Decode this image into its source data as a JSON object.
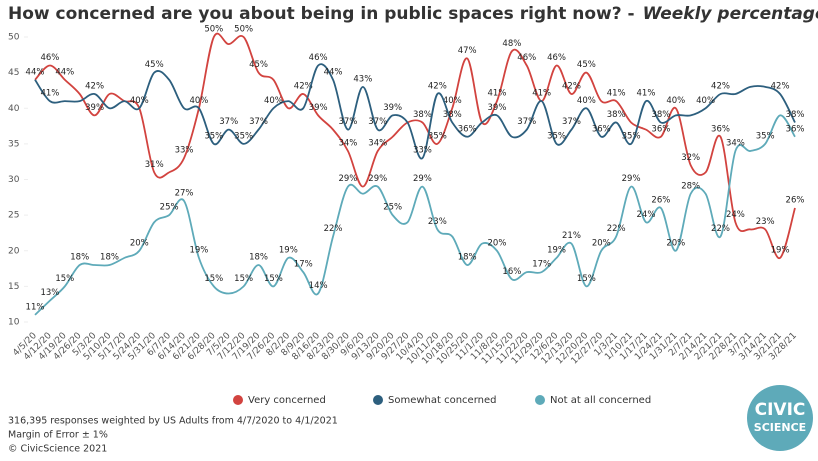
{
  "chart_data": {
    "type": "line",
    "title": "How concerned are you about being in public spaces right now? -",
    "subtitle": "Weekly percentage",
    "categories": [
      "4/5/20",
      "4/12/20",
      "4/19/20",
      "4/26/20",
      "5/3/20",
      "5/10/20",
      "5/17/20",
      "5/24/20",
      "5/31/20",
      "6/7/20",
      "6/14/20",
      "6/21/20",
      "6/28/20",
      "7/5/20",
      "7/12/20",
      "7/19/20",
      "7/26/20",
      "8/2/20",
      "8/9/20",
      "8/16/20",
      "8/23/20",
      "8/30/20",
      "9/6/20",
      "9/13/20",
      "9/20/20",
      "9/27/20",
      "10/4/20",
      "10/11/20",
      "10/18/20",
      "10/25/20",
      "11/1/20",
      "11/8/20",
      "11/15/20",
      "11/22/20",
      "11/29/20",
      "12/6/20",
      "12/13/20",
      "12/20/20",
      "12/27/20",
      "1/3/21",
      "1/10/21",
      "1/17/21",
      "1/24/21",
      "1/31/21",
      "2/7/21",
      "2/14/21",
      "2/21/21",
      "2/28/21",
      "3/7/21",
      "3/14/21",
      "3/21/21",
      "3/28/21"
    ],
    "series": [
      {
        "name": "Very concerned",
        "color": "#d2433f",
        "values": [
          44,
          46,
          44,
          42,
          39,
          42,
          41,
          40,
          31,
          31,
          33,
          40,
          50,
          49,
          50,
          45,
          44,
          40,
          42,
          39,
          37,
          34,
          29,
          34,
          36,
          38,
          38,
          35,
          40,
          47,
          38,
          41,
          48,
          46,
          41,
          46,
          42,
          45,
          41,
          41,
          38,
          37,
          36,
          40,
          32,
          31,
          36,
          24,
          23,
          23,
          19,
          26
        ],
        "value_labels": [
          null,
          "46%",
          "44%",
          null,
          "39%",
          null,
          null,
          null,
          "31%",
          null,
          "33%",
          null,
          "50%",
          null,
          "50%",
          "45%",
          null,
          null,
          "42%",
          "39%",
          null,
          "34%",
          null,
          "34%",
          null,
          null,
          "38%",
          "35%",
          "40%",
          "47%",
          null,
          "41%",
          "48%",
          "46%",
          "41%",
          "46%",
          "42%",
          "45%",
          null,
          "41%",
          null,
          null,
          "36%",
          "40%",
          "32%",
          null,
          "36%",
          "24%",
          null,
          "23%",
          "19%",
          "26%"
        ]
      },
      {
        "name": "Somewhat concerned",
        "color": "#2d5f7e",
        "values": [
          44,
          41,
          41,
          41,
          42,
          40,
          41,
          40,
          45,
          44,
          40,
          40,
          35,
          37,
          35,
          37,
          40,
          41,
          40,
          46,
          44,
          37,
          43,
          37,
          39,
          38,
          33,
          42,
          38,
          36,
          38,
          39,
          36,
          37,
          41,
          35,
          37,
          40,
          36,
          38,
          35,
          41,
          38,
          39,
          39,
          40,
          42,
          42,
          43,
          43,
          42,
          38
        ],
        "value_labels": [
          "44%",
          "41%",
          null,
          null,
          "42%",
          null,
          null,
          "40%",
          "45%",
          null,
          null,
          "40%",
          "35%",
          "37%",
          "35%",
          "37%",
          "40%",
          null,
          null,
          "46%",
          "44%",
          "37%",
          "43%",
          "37%",
          "39%",
          null,
          "33%",
          "42%",
          "38%",
          "36%",
          null,
          "39%",
          null,
          "37%",
          null,
          "35%",
          "37%",
          "40%",
          "36%",
          "38%",
          "35%",
          "41%",
          "38%",
          null,
          null,
          "40%",
          "42%",
          null,
          null,
          null,
          "42%",
          "38%"
        ]
      },
      {
        "name": "Not at all concerned",
        "color": "#5eaab9",
        "values": [
          11,
          13,
          15,
          18,
          18,
          18,
          19,
          20,
          24,
          25,
          27,
          19,
          15,
          14,
          15,
          18,
          15,
          19,
          17,
          14,
          22,
          29,
          28,
          29,
          25,
          24,
          29,
          23,
          22,
          18,
          21,
          20,
          16,
          17,
          17,
          19,
          21,
          15,
          20,
          22,
          29,
          24,
          26,
          20,
          28,
          28,
          22,
          34,
          34,
          35,
          39,
          36
        ],
        "value_labels": [
          "11%",
          "13%",
          "15%",
          "18%",
          null,
          "18%",
          null,
          "20%",
          null,
          "25%",
          "27%",
          "19%",
          "15%",
          null,
          "15%",
          "18%",
          "15%",
          "19%",
          "17%",
          "14%",
          "22%",
          "29%",
          null,
          "29%",
          "25%",
          null,
          "29%",
          "23%",
          null,
          "18%",
          null,
          "20%",
          "16%",
          null,
          "17%",
          "19%",
          "21%",
          "15%",
          "20%",
          "22%",
          "29%",
          "24%",
          "26%",
          "20%",
          "28%",
          null,
          "22%",
          "34%",
          null,
          "35%",
          null,
          "36%"
        ]
      }
    ],
    "ylim": [
      10,
      50
    ],
    "yticks": [
      10,
      15,
      20,
      25,
      30,
      35,
      40,
      45,
      50
    ],
    "legend": "bottom",
    "notes": [
      "316,395 responses weighted by US Adults from 4/7/2020 to 4/1/2021",
      "Margin of Error ± 1%",
      "© CivicScience 2021"
    ],
    "logo": [
      "CIVIC",
      "SCIENCE"
    ]
  }
}
